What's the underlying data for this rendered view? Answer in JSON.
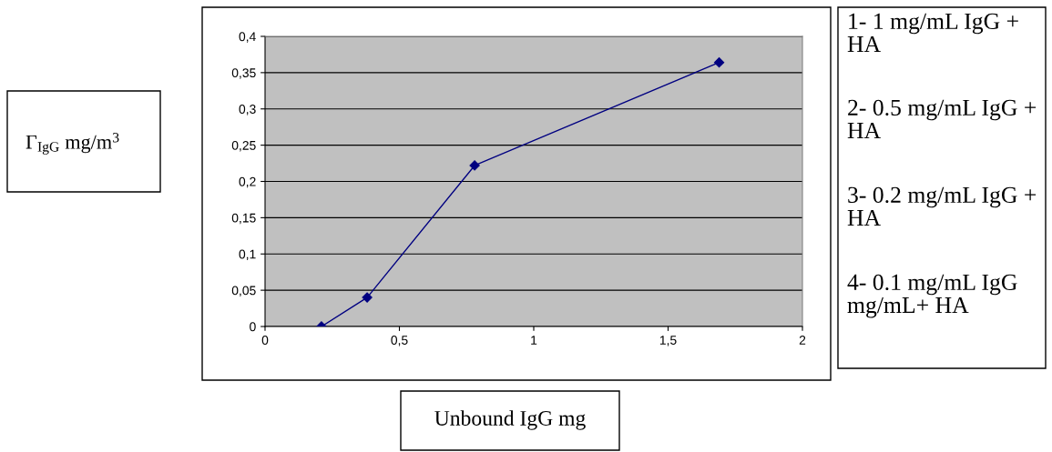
{
  "chart_data": {
    "type": "line",
    "xlabel": "Unbound IgG mg",
    "series": [
      {
        "color": "#000080",
        "x": [
          0.21,
          0.38,
          0.78,
          1.69
        ],
        "values": [
          0,
          0.04,
          0.222,
          0.364
        ]
      }
    ],
    "xlim": [
      0,
      2
    ],
    "xticks": [
      0,
      {
        "value": 0.5,
        "label": "0,5"
      },
      1,
      {
        "value": 1.5,
        "label": "1,5"
      },
      2
    ],
    "ylim": [
      0,
      0.4
    ],
    "yticks": [
      0,
      {
        "value": 0.05,
        "label": "0,05"
      },
      {
        "value": 0.1,
        "label": "0,1"
      },
      {
        "value": 0.15,
        "label": "0,15"
      },
      {
        "value": 0.2,
        "label": "0,2"
      },
      {
        "value": 0.25,
        "label": "0,25"
      },
      {
        "value": 0.3,
        "label": "0,3"
      },
      {
        "value": 0.35,
        "label": "0,35"
      },
      {
        "value": 0.4,
        "label": "0,4"
      }
    ],
    "grid": "y",
    "marker": "diamond",
    "line_style": "solid",
    "annotations": [
      "Γ$_{IgG}$ mg/m$^{3}$",
      "1- 1 mg/mL IgG + HA",
      "2- 0.5 mg/mL IgG + HA",
      "3- 0.2 mg/mL IgG + HA",
      "4- 0.1 mg/mL IgG mg/mL+ HA"
    ]
  }
}
